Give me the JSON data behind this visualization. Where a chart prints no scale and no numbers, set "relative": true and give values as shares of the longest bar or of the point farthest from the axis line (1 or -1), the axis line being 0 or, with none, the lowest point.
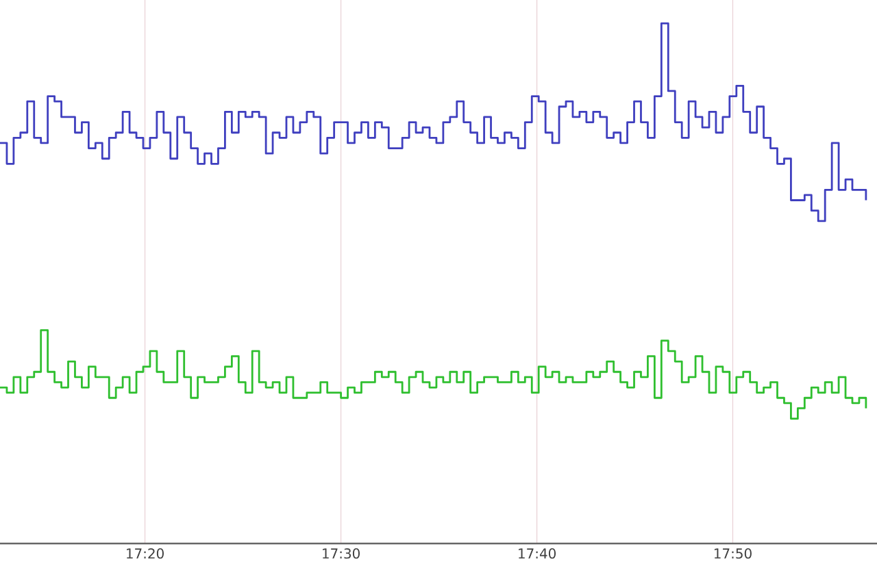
{
  "chart_data": {
    "type": "step",
    "relative": true,
    "grid": true,
    "x": [
      17.21,
      17.2158,
      17.2216,
      17.2274,
      17.2332,
      17.239,
      17.2448,
      17.2506,
      17.2564,
      17.2622,
      17.268,
      17.2738,
      17.2796,
      17.2854,
      17.2912,
      17.297,
      17.3028,
      17.3086,
      17.3144,
      17.3202,
      17.326,
      17.3318,
      17.3376,
      17.3434,
      17.3492,
      17.355,
      17.3608,
      17.3666,
      17.3724,
      17.3782,
      17.384,
      17.3898,
      17.3956,
      17.4014,
      17.4072,
      17.413,
      17.4188,
      17.4246,
      17.4304,
      17.4362,
      17.442,
      17.4478,
      17.4536,
      17.4594,
      17.4652,
      17.471,
      17.4768,
      17.4826,
      17.4884,
      17.4942,
      17.5,
      17.5058,
      17.5116,
      17.5174,
      17.5232,
      17.529,
      17.5348,
      17.5406,
      17.5464,
      17.5522,
      17.558,
      17.5638,
      17.5696,
      17.5754,
      17.5812,
      17.587,
      17.5928,
      17.5986,
      17.6044,
      17.6102,
      17.616,
      17.6218,
      17.6276,
      17.6334,
      17.6392,
      17.645,
      17.6508,
      17.6566,
      17.6624,
      17.6682,
      17.674,
      17.6798,
      17.6856,
      17.6914,
      17.6972,
      17.703,
      17.7088,
      17.7146,
      17.7204,
      17.7262,
      17.732,
      17.7378,
      17.7436,
      17.7494,
      17.7552,
      17.761,
      17.7668,
      17.7726,
      17.7784,
      17.7842,
      17.79,
      17.7958,
      17.8016,
      17.8074,
      17.8132,
      17.819,
      17.8248,
      17.8306,
      17.8364,
      17.8422,
      17.848,
      17.8538,
      17.8596,
      17.8654,
      17.8712,
      17.877,
      17.8828,
      17.8886,
      17.8944,
      17.9002,
      17.906,
      17.9118,
      17.9176,
      17.9234,
      17.9292,
      17.935,
      17.9408,
      17.9466
    ],
    "xlim": [
      17.21,
      17.956
    ],
    "xticks": [
      {
        "value": 17.3333,
        "label": "17:20"
      },
      {
        "value": 17.5,
        "label": "17:30"
      },
      {
        "value": 17.6667,
        "label": "17:40"
      },
      {
        "value": 17.8333,
        "label": "17:50"
      }
    ],
    "series": [
      {
        "color": "#3f3fbf",
        "values": [
          0.77,
          0.73,
          0.78,
          0.79,
          0.85,
          0.78,
          0.77,
          0.86,
          0.85,
          0.82,
          0.82,
          0.79,
          0.81,
          0.76,
          0.77,
          0.74,
          0.78,
          0.79,
          0.83,
          0.79,
          0.78,
          0.76,
          0.78,
          0.83,
          0.79,
          0.74,
          0.82,
          0.79,
          0.76,
          0.73,
          0.75,
          0.73,
          0.76,
          0.83,
          0.79,
          0.83,
          0.82,
          0.83,
          0.82,
          0.75,
          0.79,
          0.78,
          0.82,
          0.79,
          0.81,
          0.83,
          0.82,
          0.75,
          0.78,
          0.81,
          0.81,
          0.77,
          0.79,
          0.81,
          0.78,
          0.81,
          0.8,
          0.76,
          0.76,
          0.78,
          0.81,
          0.79,
          0.8,
          0.78,
          0.77,
          0.81,
          0.82,
          0.85,
          0.81,
          0.79,
          0.77,
          0.82,
          0.78,
          0.77,
          0.79,
          0.78,
          0.76,
          0.81,
          0.86,
          0.85,
          0.79,
          0.77,
          0.84,
          0.85,
          0.82,
          0.83,
          0.81,
          0.83,
          0.82,
          0.78,
          0.79,
          0.77,
          0.81,
          0.85,
          0.81,
          0.78,
          0.86,
          1.0,
          0.87,
          0.81,
          0.78,
          0.85,
          0.82,
          0.8,
          0.83,
          0.79,
          0.82,
          0.86,
          0.88,
          0.83,
          0.79,
          0.84,
          0.78,
          0.76,
          0.73,
          0.74,
          0.66,
          0.66,
          0.67,
          0.64,
          0.62,
          0.68,
          0.77,
          0.68,
          0.7,
          0.68,
          0.68,
          0.66
        ]
      },
      {
        "color": "#2fbf2f",
        "values": [
          0.3,
          0.29,
          0.32,
          0.29,
          0.32,
          0.33,
          0.41,
          0.33,
          0.31,
          0.3,
          0.35,
          0.32,
          0.3,
          0.34,
          0.32,
          0.32,
          0.28,
          0.3,
          0.32,
          0.29,
          0.33,
          0.34,
          0.37,
          0.33,
          0.31,
          0.31,
          0.37,
          0.32,
          0.28,
          0.32,
          0.31,
          0.31,
          0.32,
          0.34,
          0.36,
          0.31,
          0.29,
          0.37,
          0.31,
          0.3,
          0.31,
          0.29,
          0.32,
          0.28,
          0.28,
          0.29,
          0.29,
          0.31,
          0.29,
          0.29,
          0.28,
          0.3,
          0.29,
          0.31,
          0.31,
          0.33,
          0.32,
          0.33,
          0.31,
          0.29,
          0.32,
          0.33,
          0.31,
          0.3,
          0.32,
          0.31,
          0.33,
          0.31,
          0.33,
          0.29,
          0.31,
          0.32,
          0.32,
          0.31,
          0.31,
          0.33,
          0.31,
          0.32,
          0.29,
          0.34,
          0.32,
          0.33,
          0.31,
          0.32,
          0.31,
          0.31,
          0.33,
          0.32,
          0.33,
          0.35,
          0.33,
          0.31,
          0.3,
          0.33,
          0.32,
          0.36,
          0.28,
          0.39,
          0.37,
          0.35,
          0.31,
          0.32,
          0.36,
          0.33,
          0.29,
          0.34,
          0.33,
          0.29,
          0.32,
          0.33,
          0.31,
          0.29,
          0.3,
          0.31,
          0.28,
          0.27,
          0.24,
          0.26,
          0.28,
          0.3,
          0.29,
          0.31,
          0.29,
          0.32,
          0.28,
          0.27,
          0.28,
          0.26
        ]
      }
    ]
  }
}
